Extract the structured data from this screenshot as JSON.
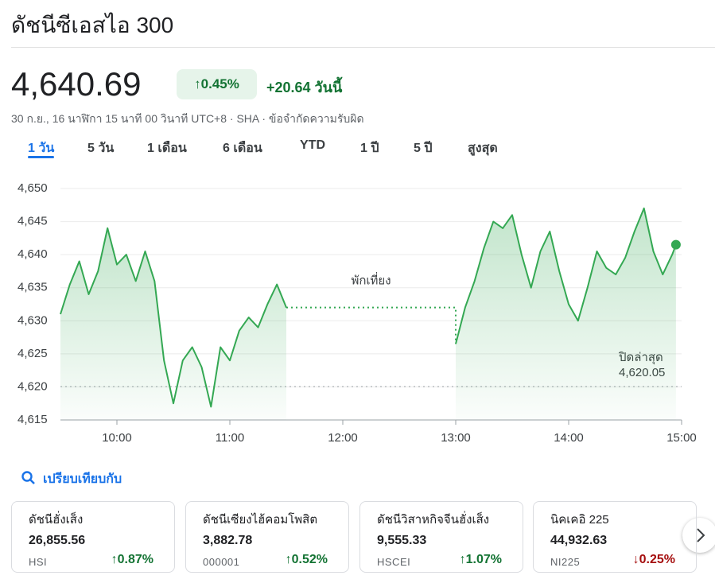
{
  "header": {
    "title": "ดัชนีซีเอสไอ 300",
    "price": "4,640.69",
    "change_percent": "0.45%",
    "change_today": "+20.64 วันนี้",
    "meta": "30 ก.ย., 16 นาฬิกา 15 นาที 00 วินาที UTC+8 · SHA · ข้อจำกัดความรับผิด"
  },
  "tabs": [
    "1 วัน",
    "5 วัน",
    "1 เดือน",
    "6 เดือน",
    "YTD",
    "1 ปี",
    "5 ปี",
    "สูงสุด"
  ],
  "chart_data": {
    "type": "line",
    "color": "#34a853",
    "x": [
      570,
      575,
      580,
      585,
      590,
      595,
      600,
      605,
      610,
      615,
      620,
      625,
      630,
      635,
      640,
      645,
      650,
      655,
      660,
      665,
      670,
      675,
      680,
      685,
      690,
      735,
      780,
      785,
      790,
      795,
      800,
      805,
      810,
      815,
      820,
      825,
      830,
      835,
      840,
      845,
      850,
      855,
      860,
      865,
      870,
      875,
      880,
      885,
      890,
      895,
      897
    ],
    "values": [
      4631.0,
      4635.5,
      4639.0,
      4634.0,
      4637.5,
      4644.0,
      4638.5,
      4640.0,
      4636.0,
      4640.5,
      4636.0,
      4624.0,
      4617.5,
      4624.0,
      4626.0,
      4623.0,
      4617.0,
      4626.0,
      4624.0,
      4628.5,
      4630.5,
      4629.0,
      4632.5,
      4635.5,
      4632.0,
      null,
      4626.5,
      4632.0,
      4636.0,
      4641.0,
      4645.0,
      4644.0,
      4646.0,
      4640.0,
      4635.0,
      4640.5,
      4643.5,
      4637.5,
      4632.5,
      4630.0,
      4635.0,
      4640.5,
      4638.0,
      4637.0,
      4639.5,
      4643.5,
      4647.0,
      4640.5,
      4637.0,
      4640.0,
      4641.5
    ],
    "xlim": [
      570,
      900
    ],
    "xticks": [
      {
        "value": 600,
        "label": "10:00"
      },
      {
        "value": 660,
        "label": "11:00"
      },
      {
        "value": 720,
        "label": "12:00"
      },
      {
        "value": 780,
        "label": "13:00"
      },
      {
        "value": 840,
        "label": "14:00"
      },
      {
        "value": 900,
        "label": "15:00"
      }
    ],
    "ylim": [
      4615,
      4650
    ],
    "yticks": [
      {
        "value": 4615,
        "label": "4,615"
      },
      {
        "value": 4620,
        "label": "4,620"
      },
      {
        "value": 4625,
        "label": "4,625"
      },
      {
        "value": 4630,
        "label": "4,630"
      },
      {
        "value": 4635,
        "label": "4,635"
      },
      {
        "value": 4640,
        "label": "4,640"
      },
      {
        "value": 4645,
        "label": "4,645"
      },
      {
        "value": 4650,
        "label": "4,650"
      }
    ],
    "grid": true,
    "lunch_label": "พักเที่ยง",
    "previous_close": {
      "label": "ปิดล่าสุด",
      "value": 4620.05,
      "value_label": "4,620.05"
    }
  },
  "compare": {
    "title": "เปรียบเทียบกับ",
    "cards": [
      {
        "name": "ดัชนีฮั่งเส็ง",
        "value": "26,855.56",
        "code": "HSI",
        "change": "0.87%",
        "dir": "up"
      },
      {
        "name": "ดัชนีเซียงไฮ้คอมโพสิต",
        "value": "3,882.78",
        "code": "000001",
        "change": "0.52%",
        "dir": "up"
      },
      {
        "name": "ดัชนีวิสาหกิจจีนฮั่งเส็ง",
        "value": "9,555.33",
        "code": "HSCEI",
        "change": "1.07%",
        "dir": "up"
      },
      {
        "name": "นิคเคอิ 225",
        "value": "44,932.63",
        "code": "NI225",
        "change": "0.25%",
        "dir": "down"
      }
    ]
  }
}
